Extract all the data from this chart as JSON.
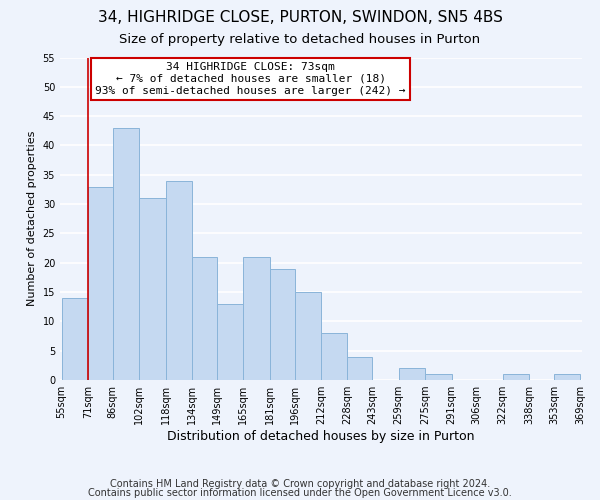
{
  "title": "34, HIGHRIDGE CLOSE, PURTON, SWINDON, SN5 4BS",
  "subtitle": "Size of property relative to detached houses in Purton",
  "xlabel": "Distribution of detached houses by size in Purton",
  "ylabel": "Number of detached properties",
  "bar_edges": [
    55,
    71,
    86,
    102,
    118,
    134,
    149,
    165,
    181,
    196,
    212,
    228,
    243,
    259,
    275,
    291,
    306,
    322,
    338,
    353,
    369
  ],
  "bar_heights": [
    14,
    33,
    43,
    31,
    34,
    21,
    13,
    21,
    19,
    15,
    8,
    4,
    0,
    2,
    1,
    0,
    0,
    1,
    0,
    1
  ],
  "bar_color": "#c5d9f1",
  "bar_edge_color": "#8ab4d9",
  "ylim": [
    0,
    55
  ],
  "yticks": [
    0,
    5,
    10,
    15,
    20,
    25,
    30,
    35,
    40,
    45,
    50,
    55
  ],
  "xlabels": [
    "55sqm",
    "71sqm",
    "86sqm",
    "102sqm",
    "118sqm",
    "134sqm",
    "149sqm",
    "165sqm",
    "181sqm",
    "196sqm",
    "212sqm",
    "228sqm",
    "243sqm",
    "259sqm",
    "275sqm",
    "291sqm",
    "306sqm",
    "322sqm",
    "338sqm",
    "353sqm",
    "369sqm"
  ],
  "property_line_x": 71,
  "annotation_title": "34 HIGHRIDGE CLOSE: 73sqm",
  "annotation_line1": "← 7% of detached houses are smaller (18)",
  "annotation_line2": "93% of semi-detached houses are larger (242) →",
  "annotation_box_color": "#ffffff",
  "annotation_box_edge": "#cc0000",
  "property_line_color": "#cc0000",
  "footer1": "Contains HM Land Registry data © Crown copyright and database right 2024.",
  "footer2": "Contains public sector information licensed under the Open Government Licence v3.0.",
  "background_color": "#eef3fc",
  "grid_color": "#ffffff",
  "title_fontsize": 11,
  "subtitle_fontsize": 9.5,
  "xlabel_fontsize": 9,
  "ylabel_fontsize": 8,
  "tick_fontsize": 7,
  "footer_fontsize": 7,
  "annotation_fontsize": 8
}
